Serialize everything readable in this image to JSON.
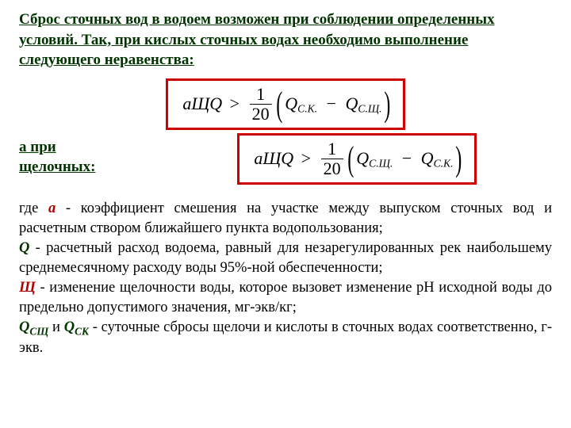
{
  "heading": "Сброс сточных вод в водоем возможен при соблюдении определенных условий. Так, при кислых сточных водах необходимо выполнение следующего неравенства:",
  "sub_heading": "а при щелочных:",
  "formula1": {
    "lhs": {
      "a": "а",
      "shch": "Щ",
      "Q": "Q"
    },
    "frac": {
      "num": "1",
      "den": "20"
    },
    "inner": {
      "p1": "Q",
      "s1": "С.К.",
      "p2": "Q",
      "s2": "С.Щ."
    }
  },
  "formula2": {
    "lhs": {
      "a": "а",
      "shch": "Щ",
      "Q": "Q"
    },
    "frac": {
      "num": "1",
      "den": "20"
    },
    "inner": {
      "p1": "Q",
      "s1": "С.Щ.",
      "p2": "Q",
      "s2": "С.К."
    }
  },
  "explain": {
    "l1a": "где ",
    "sym_a": "а",
    "l1b": " - коэффициент смешения на участке между выпуском сточных вод и расчетным створом ближайшего пункта водопользования;",
    "sym_Q": "Q",
    "l2": " - расчетный расход водоема, равный для незарегулированных рек наибольшему среднемесячному расходу воды 95%-ной обеспеченности;",
    "sym_Shch": "Щ",
    "l3": " - изменение щелочности воды, которое вызовет изменение рН исходной воды до предельно допустимого значения, мг-экв/кг;",
    "qsub1_main": "Q",
    "qsub1_sub": "СЩ",
    "and": " и ",
    "qsub2_main": "Q",
    "qsub2_sub": "СК",
    "l4": " - суточные сбросы щелочи и кислоты в сточных водах соответственно, г-экв."
  }
}
